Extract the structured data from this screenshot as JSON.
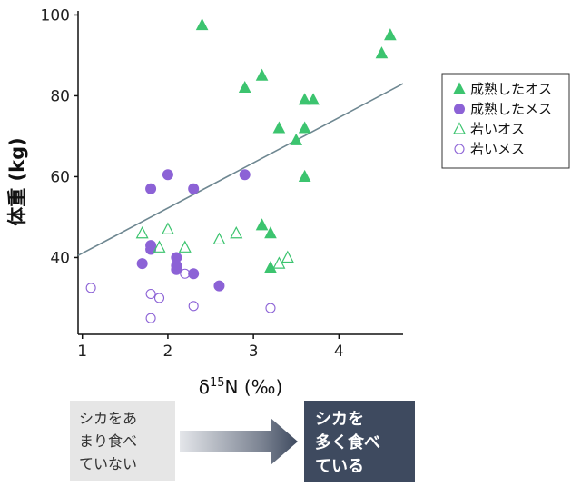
{
  "chart_data": {
    "type": "scatter",
    "xlabel": "δ15N (‰)",
    "ylabel": "体重 (kg)",
    "xlim": [
      0.95,
      4.75
    ],
    "ylim": [
      21,
      101
    ],
    "x_ticks": [
      1,
      2,
      3,
      4
    ],
    "y_ticks": [
      40,
      60,
      80,
      100
    ],
    "grid": false,
    "legend_position": "right",
    "series": [
      {
        "name": "成熟したオス",
        "marker": "triangle-filled",
        "color": "#3cc46f",
        "points": [
          {
            "x": 2.4,
            "y": 97.5
          },
          {
            "x": 4.6,
            "y": 95
          },
          {
            "x": 4.5,
            "y": 90.5
          },
          {
            "x": 3.1,
            "y": 85
          },
          {
            "x": 2.9,
            "y": 82
          },
          {
            "x": 3.6,
            "y": 79
          },
          {
            "x": 3.7,
            "y": 79
          },
          {
            "x": 3.3,
            "y": 72
          },
          {
            "x": 3.6,
            "y": 72
          },
          {
            "x": 3.5,
            "y": 69
          },
          {
            "x": 3.6,
            "y": 60
          },
          {
            "x": 3.1,
            "y": 48
          },
          {
            "x": 3.2,
            "y": 46
          },
          {
            "x": 3.2,
            "y": 37.5
          }
        ]
      },
      {
        "name": "成熟したメス",
        "marker": "circle-filled",
        "color": "#8c62d6",
        "points": [
          {
            "x": 2.0,
            "y": 60.5
          },
          {
            "x": 2.9,
            "y": 60.5
          },
          {
            "x": 1.8,
            "y": 57
          },
          {
            "x": 2.3,
            "y": 57
          },
          {
            "x": 1.8,
            "y": 43
          },
          {
            "x": 1.8,
            "y": 42
          },
          {
            "x": 2.1,
            "y": 40
          },
          {
            "x": 2.1,
            "y": 38
          },
          {
            "x": 2.1,
            "y": 37
          },
          {
            "x": 1.7,
            "y": 38.5
          },
          {
            "x": 2.3,
            "y": 36
          },
          {
            "x": 2.6,
            "y": 33
          }
        ]
      },
      {
        "name": "若いオス",
        "marker": "triangle-open",
        "color": "#3cc46f",
        "points": [
          {
            "x": 2.0,
            "y": 47
          },
          {
            "x": 1.7,
            "y": 46
          },
          {
            "x": 2.8,
            "y": 46
          },
          {
            "x": 2.6,
            "y": 44.5
          },
          {
            "x": 1.9,
            "y": 42.5
          },
          {
            "x": 2.2,
            "y": 42.5
          },
          {
            "x": 3.4,
            "y": 40
          },
          {
            "x": 3.3,
            "y": 38.5
          }
        ]
      },
      {
        "name": "若いメス",
        "marker": "circle-open",
        "color": "#8c62d6",
        "points": [
          {
            "x": 1.1,
            "y": 32.5
          },
          {
            "x": 1.8,
            "y": 31
          },
          {
            "x": 1.9,
            "y": 30
          },
          {
            "x": 2.2,
            "y": 36
          },
          {
            "x": 2.3,
            "y": 28
          },
          {
            "x": 3.2,
            "y": 27.5
          },
          {
            "x": 1.8,
            "y": 25
          }
        ]
      }
    ],
    "trendline": {
      "color": "#6e8791",
      "x_start": 0.95,
      "y_start": 40.5,
      "x_end": 4.75,
      "y_end": 83
    }
  },
  "comparison": {
    "left_text": "シカをあ\nまり食べ\nていない",
    "right_text": "シカを\n多く食べ\nている"
  }
}
